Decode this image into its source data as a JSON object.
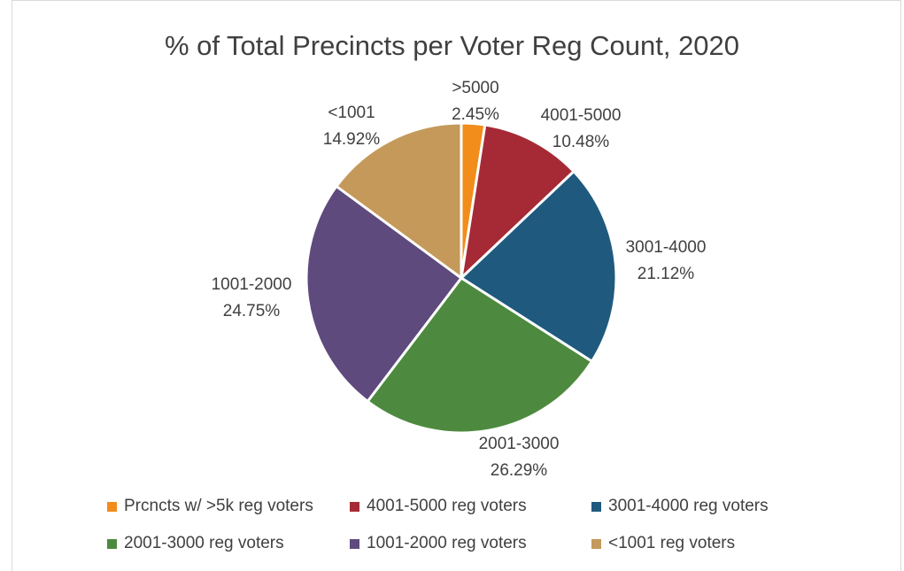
{
  "chart_data": {
    "type": "pie",
    "title": "% of Total Precincts per Voter Reg Count, 2020",
    "categories": [
      ">5000",
      "4001-5000",
      "3001-4000",
      "2001-3000",
      "1001-2000",
      "<1001"
    ],
    "values": [
      2.45,
      10.48,
      21.12,
      26.29,
      24.75,
      14.92
    ],
    "value_labels": [
      "2.45%",
      "10.48%",
      "21.12%",
      "26.29%",
      "24.75%",
      "14.92%"
    ],
    "colors": [
      "#f28c1b",
      "#a52a35",
      "#1f5a7e",
      "#4d8a3f",
      "#5e4a7d",
      "#c4995a"
    ],
    "legend": {
      "position": "bottom",
      "entries": [
        "Prcncts w/ >5k reg voters",
        "4001-5000 reg voters",
        "3001-4000 reg voters",
        "2001-3000 reg voters",
        "1001-2000 reg voters",
        "<1001 reg voters"
      ]
    }
  }
}
